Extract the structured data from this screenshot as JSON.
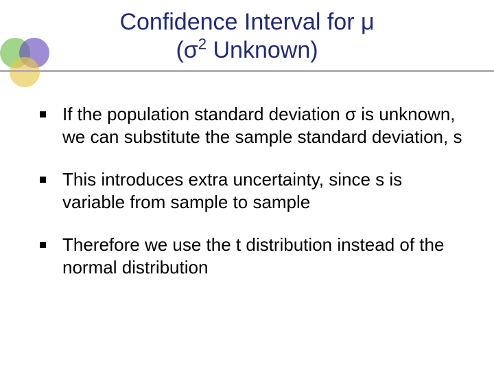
{
  "title": {
    "line1": "Confidence Interval for μ",
    "line2_prefix": "(σ",
    "line2_sup": "2",
    "line2_suffix": " Unknown)",
    "color": "#1f2b7a",
    "fontsize": 34
  },
  "decor": {
    "circle_green": "#6fbf4b",
    "circle_purple": "#6a4fbf",
    "circle_yellow": "#e6c84a",
    "underline_color": "#b0b0b0"
  },
  "bullets": [
    "If the population standard deviation  σ  is unknown, we can substitute the sample standard deviation, s",
    "This introduces extra uncertainty, since  s  is variable from sample to sample",
    "Therefore we use the  t  distribution instead of the normal distribution"
  ],
  "bullet_fontsize": 26,
  "background_color": "#ffffff"
}
